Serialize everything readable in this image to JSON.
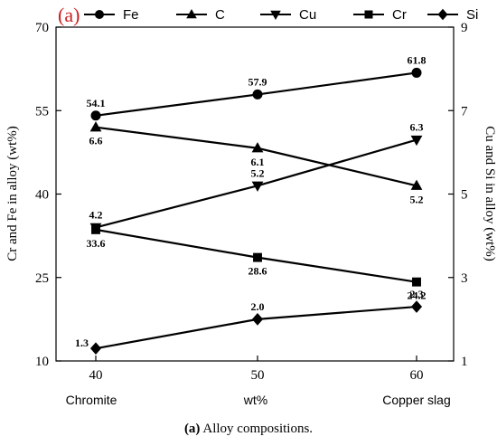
{
  "chart_data": {
    "type": "line",
    "panel_label": "(a)",
    "categories": [
      40,
      50,
      60
    ],
    "x_bottom_labels": [
      "Chromite",
      "wt%",
      "Copper slag"
    ],
    "ylabel_left": "Cr and Fe in alloy (wt%)",
    "ylabel_right": "Cu and Si in alloy (wt%)",
    "ylim_left": [
      10,
      70
    ],
    "yticks_left": [
      10,
      25,
      40,
      55,
      70
    ],
    "ylim_right": [
      1,
      9
    ],
    "yticks_right": [
      1,
      3,
      5,
      7,
      9
    ],
    "legend_position": "top",
    "series": [
      {
        "name": "Fe",
        "axis": "left",
        "marker": "circle",
        "values": [
          54.1,
          57.9,
          61.8
        ],
        "labels": [
          "54.1",
          "57.9",
          "61.8"
        ],
        "label_pos": [
          "above",
          "above",
          "above"
        ]
      },
      {
        "name": "C",
        "axis": "right",
        "marker": "triangle-up",
        "values": [
          6.6,
          6.1,
          5.2
        ],
        "labels": [
          "6.6",
          "6.1",
          "5.2"
        ],
        "label_pos": [
          "below",
          "below",
          "below"
        ]
      },
      {
        "name": "Cu",
        "axis": "right",
        "marker": "triangle-down",
        "values": [
          4.2,
          5.2,
          6.3
        ],
        "labels": [
          "4.2",
          "5.2",
          "6.3"
        ],
        "label_pos": [
          "above",
          "above",
          "above"
        ]
      },
      {
        "name": "Cr",
        "axis": "left",
        "marker": "square",
        "values": [
          33.6,
          28.6,
          24.2
        ],
        "labels": [
          "33.6",
          "28.6",
          "24.2"
        ],
        "label_pos": [
          "below",
          "below",
          "below"
        ]
      },
      {
        "name": "Si",
        "axis": "right",
        "marker": "diamond",
        "values": [
          1.3,
          2.0,
          2.3
        ],
        "labels": [
          "1.3",
          "2.0",
          "2.3"
        ],
        "label_pos": [
          "left",
          "above",
          "above"
        ]
      }
    ]
  },
  "caption": {
    "label": "(a)",
    "text": "Alloy compositions."
  }
}
